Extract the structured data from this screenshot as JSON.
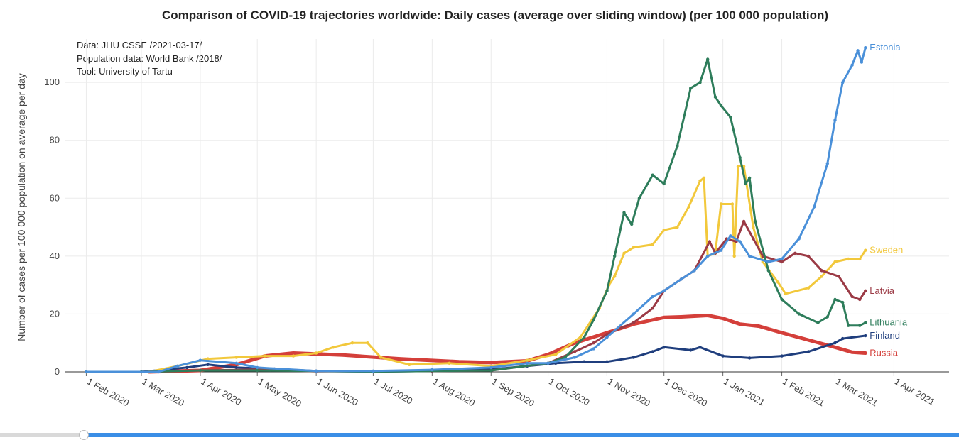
{
  "chart_data": {
    "type": "line",
    "title": "Comparison of COVID-19 trajectories worldwide: Daily cases (average over sliding window) (per 100 000 population)",
    "ylabel": "Number of cases per 100 000 population on average per day",
    "xlabel": "",
    "source_lines": [
      "Data: JHU CSSE /2021-03-17/",
      "Population data: World Bank /2018/",
      "Tool: University of Tartu"
    ],
    "ylim": [
      0,
      115
    ],
    "y_ticks": [
      0,
      20,
      40,
      60,
      80,
      100
    ],
    "x_range": [
      "2020-01-21",
      "2021-04-30"
    ],
    "x_ticks": [
      {
        "date": "2020-02-01",
        "label": "1 Feb 2020"
      },
      {
        "date": "2020-03-01",
        "label": "1 Mar 2020"
      },
      {
        "date": "2020-04-01",
        "label": "1 Apr 2020"
      },
      {
        "date": "2020-05-01",
        "label": "1 May 2020"
      },
      {
        "date": "2020-06-01",
        "label": "1 Jun 2020"
      },
      {
        "date": "2020-07-01",
        "label": "1 Jul 2020"
      },
      {
        "date": "2020-08-01",
        "label": "1 Aug 2020"
      },
      {
        "date": "2020-09-01",
        "label": "1 Sep 2020"
      },
      {
        "date": "2020-10-01",
        "label": "1 Oct 2020"
      },
      {
        "date": "2020-11-01",
        "label": "1 Nov 2020"
      },
      {
        "date": "2020-12-01",
        "label": "1 Dec 2020"
      },
      {
        "date": "2021-01-01",
        "label": "1 Jan 2021"
      },
      {
        "date": "2021-02-01",
        "label": "1 Feb 2021"
      },
      {
        "date": "2021-03-01",
        "label": "1 Mar 2021"
      },
      {
        "date": "2021-04-01",
        "label": "1 Apr 2021"
      }
    ],
    "grid": true,
    "legend": "labels at line ends",
    "series": [
      {
        "name": "Russia",
        "color": "#d43f3a",
        "points": [
          [
            "2020-03-05",
            0
          ],
          [
            "2020-04-01",
            0.5
          ],
          [
            "2020-04-20",
            2.5
          ],
          [
            "2020-05-05",
            5.5
          ],
          [
            "2020-05-20",
            6.5
          ],
          [
            "2020-06-15",
            5.8
          ],
          [
            "2020-07-15",
            4.5
          ],
          [
            "2020-08-15",
            3.5
          ],
          [
            "2020-09-01",
            3.2
          ],
          [
            "2020-09-20",
            3.8
          ],
          [
            "2020-10-01",
            6
          ],
          [
            "2020-10-15",
            10
          ],
          [
            "2020-11-01",
            13.5
          ],
          [
            "2020-11-15",
            16.5
          ],
          [
            "2020-12-01",
            18.8
          ],
          [
            "2020-12-10",
            19
          ],
          [
            "2020-12-24",
            19.5
          ],
          [
            "2021-01-01",
            18.5
          ],
          [
            "2021-01-10",
            16.5
          ],
          [
            "2021-01-20",
            15.8
          ],
          [
            "2021-02-01",
            13.5
          ],
          [
            "2021-02-15",
            11
          ],
          [
            "2021-03-01",
            8.5
          ],
          [
            "2021-03-10",
            6.8
          ],
          [
            "2021-03-17",
            6.5
          ]
        ]
      },
      {
        "name": "Finland",
        "color": "#1f3e7d",
        "points": [
          [
            "2020-03-01",
            0
          ],
          [
            "2020-03-25",
            1.5
          ],
          [
            "2020-04-05",
            2.5
          ],
          [
            "2020-04-20",
            1.5
          ],
          [
            "2020-05-10",
            1
          ],
          [
            "2020-06-01",
            0.3
          ],
          [
            "2020-07-01",
            0.1
          ],
          [
            "2020-08-01",
            0.3
          ],
          [
            "2020-09-01",
            0.8
          ],
          [
            "2020-09-20",
            2
          ],
          [
            "2020-10-05",
            3
          ],
          [
            "2020-10-20",
            3.5
          ],
          [
            "2020-11-01",
            3.5
          ],
          [
            "2020-11-15",
            5
          ],
          [
            "2020-11-25",
            7
          ],
          [
            "2020-12-01",
            8.5
          ],
          [
            "2020-12-15",
            7.5
          ],
          [
            "2020-12-20",
            8.5
          ],
          [
            "2021-01-01",
            5.5
          ],
          [
            "2021-01-15",
            4.8
          ],
          [
            "2021-02-01",
            5.5
          ],
          [
            "2021-02-15",
            7
          ],
          [
            "2021-03-01",
            10
          ],
          [
            "2021-03-05",
            11.5
          ],
          [
            "2021-03-17",
            12.5
          ]
        ]
      },
      {
        "name": "Sweden",
        "color": "#f2c83b",
        "points": [
          [
            "2020-02-01",
            0
          ],
          [
            "2020-03-05",
            0
          ],
          [
            "2020-03-20",
            2
          ],
          [
            "2020-04-05",
            4.5
          ],
          [
            "2020-04-20",
            5
          ],
          [
            "2020-05-05",
            5.5
          ],
          [
            "2020-05-20",
            5.5
          ],
          [
            "2020-06-01",
            6.5
          ],
          [
            "2020-06-10",
            8.5
          ],
          [
            "2020-06-20",
            10
          ],
          [
            "2020-06-28",
            10
          ],
          [
            "2020-07-05",
            5
          ],
          [
            "2020-07-20",
            2.5
          ],
          [
            "2020-08-10",
            3
          ],
          [
            "2020-09-01",
            2
          ],
          [
            "2020-09-20",
            4
          ],
          [
            "2020-10-05",
            6
          ],
          [
            "2020-10-18",
            12
          ],
          [
            "2020-10-28",
            22
          ],
          [
            "2020-11-02",
            30
          ],
          [
            "2020-11-05",
            33
          ],
          [
            "2020-11-10",
            41
          ],
          [
            "2020-11-15",
            43
          ],
          [
            "2020-11-25",
            44
          ],
          [
            "2020-12-01",
            49
          ],
          [
            "2020-12-08",
            50
          ],
          [
            "2020-12-14",
            57
          ],
          [
            "2020-12-20",
            66
          ],
          [
            "2020-12-22",
            67
          ],
          [
            "2020-12-24",
            40
          ],
          [
            "2020-12-28",
            41
          ],
          [
            "2020-12-31",
            58
          ],
          [
            "2021-01-06",
            58
          ],
          [
            "2021-01-07",
            40
          ],
          [
            "2021-01-09",
            71
          ],
          [
            "2021-01-12",
            71
          ],
          [
            "2021-01-17",
            50
          ],
          [
            "2021-01-22",
            38
          ],
          [
            "2021-01-30",
            31
          ],
          [
            "2021-02-03",
            27
          ],
          [
            "2021-02-15",
            29
          ],
          [
            "2021-02-22",
            33
          ],
          [
            "2021-03-01",
            38
          ],
          [
            "2021-03-08",
            39
          ],
          [
            "2021-03-14",
            39
          ],
          [
            "2021-03-17",
            42
          ]
        ]
      },
      {
        "name": "Latvia",
        "color": "#9b3a45",
        "points": [
          [
            "2020-03-01",
            0
          ],
          [
            "2020-04-01",
            0.5
          ],
          [
            "2020-05-01",
            0.8
          ],
          [
            "2020-06-01",
            0.2
          ],
          [
            "2020-08-01",
            0.3
          ],
          [
            "2020-09-01",
            0.5
          ],
          [
            "2020-10-01",
            3
          ],
          [
            "2020-10-15",
            7
          ],
          [
            "2020-10-25",
            10
          ],
          [
            "2020-11-01",
            13
          ],
          [
            "2020-11-15",
            17
          ],
          [
            "2020-11-25",
            22
          ],
          [
            "2020-12-01",
            28
          ],
          [
            "2020-12-10",
            32
          ],
          [
            "2020-12-17",
            35
          ],
          [
            "2020-12-25",
            45
          ],
          [
            "2020-12-28",
            41
          ],
          [
            "2021-01-03",
            46
          ],
          [
            "2021-01-08",
            45
          ],
          [
            "2021-01-12",
            52
          ],
          [
            "2021-01-17",
            46
          ],
          [
            "2021-01-22",
            40
          ],
          [
            "2021-02-01",
            38
          ],
          [
            "2021-02-08",
            41
          ],
          [
            "2021-02-15",
            40
          ],
          [
            "2021-02-22",
            35
          ],
          [
            "2021-03-03",
            33
          ],
          [
            "2021-03-10",
            26
          ],
          [
            "2021-03-14",
            25
          ],
          [
            "2021-03-17",
            28
          ]
        ]
      },
      {
        "name": "Lithuania",
        "color": "#2e7d5b",
        "points": [
          [
            "2020-03-01",
            0
          ],
          [
            "2020-04-01",
            0.5
          ],
          [
            "2020-05-01",
            0.5
          ],
          [
            "2020-07-01",
            0.1
          ],
          [
            "2020-09-01",
            0.5
          ],
          [
            "2020-10-01",
            3
          ],
          [
            "2020-10-10",
            5
          ],
          [
            "2020-10-20",
            12
          ],
          [
            "2020-10-25",
            18
          ],
          [
            "2020-11-01",
            28
          ],
          [
            "2020-11-05",
            40
          ],
          [
            "2020-11-10",
            55
          ],
          [
            "2020-11-14",
            51
          ],
          [
            "2020-11-18",
            60
          ],
          [
            "2020-11-25",
            68
          ],
          [
            "2020-12-01",
            65
          ],
          [
            "2020-12-08",
            78
          ],
          [
            "2020-12-15",
            98
          ],
          [
            "2020-12-20",
            100
          ],
          [
            "2020-12-24",
            108
          ],
          [
            "2020-12-28",
            95
          ],
          [
            "2020-12-31",
            92
          ],
          [
            "2021-01-05",
            88
          ],
          [
            "2021-01-10",
            74
          ],
          [
            "2021-01-13",
            65
          ],
          [
            "2021-01-15",
            67
          ],
          [
            "2021-01-18",
            52
          ],
          [
            "2021-01-25",
            35
          ],
          [
            "2021-02-01",
            25
          ],
          [
            "2021-02-10",
            20
          ],
          [
            "2021-02-20",
            17
          ],
          [
            "2021-02-25",
            19
          ],
          [
            "2021-03-01",
            25
          ],
          [
            "2021-03-05",
            24
          ],
          [
            "2021-03-08",
            16
          ],
          [
            "2021-03-14",
            16
          ],
          [
            "2021-03-17",
            17
          ]
        ]
      },
      {
        "name": "Estonia",
        "color": "#4a90d9",
        "points": [
          [
            "2020-02-01",
            0
          ],
          [
            "2020-03-10",
            0
          ],
          [
            "2020-03-20",
            2
          ],
          [
            "2020-04-01",
            4
          ],
          [
            "2020-04-20",
            3
          ],
          [
            "2020-05-01",
            1.5
          ],
          [
            "2020-06-01",
            0.3
          ],
          [
            "2020-07-01",
            0.3
          ],
          [
            "2020-08-01",
            0.7
          ],
          [
            "2020-09-01",
            1.5
          ],
          [
            "2020-09-20",
            3
          ],
          [
            "2020-10-01",
            3
          ],
          [
            "2020-10-15",
            5
          ],
          [
            "2020-10-25",
            8
          ],
          [
            "2020-11-01",
            12
          ],
          [
            "2020-11-15",
            20
          ],
          [
            "2020-11-25",
            26
          ],
          [
            "2020-12-01",
            28
          ],
          [
            "2020-12-10",
            32
          ],
          [
            "2020-12-17",
            35
          ],
          [
            "2020-12-24",
            40
          ],
          [
            "2020-12-31",
            42
          ],
          [
            "2021-01-05",
            47
          ],
          [
            "2021-01-10",
            45
          ],
          [
            "2021-01-15",
            40
          ],
          [
            "2021-01-25",
            38
          ],
          [
            "2021-02-01",
            39
          ],
          [
            "2021-02-10",
            46
          ],
          [
            "2021-02-18",
            57
          ],
          [
            "2021-02-25",
            72
          ],
          [
            "2021-03-01",
            87
          ],
          [
            "2021-03-05",
            100
          ],
          [
            "2021-03-10",
            106
          ],
          [
            "2021-03-13",
            111
          ],
          [
            "2021-03-15",
            107
          ],
          [
            "2021-03-17",
            112
          ]
        ]
      }
    ]
  }
}
